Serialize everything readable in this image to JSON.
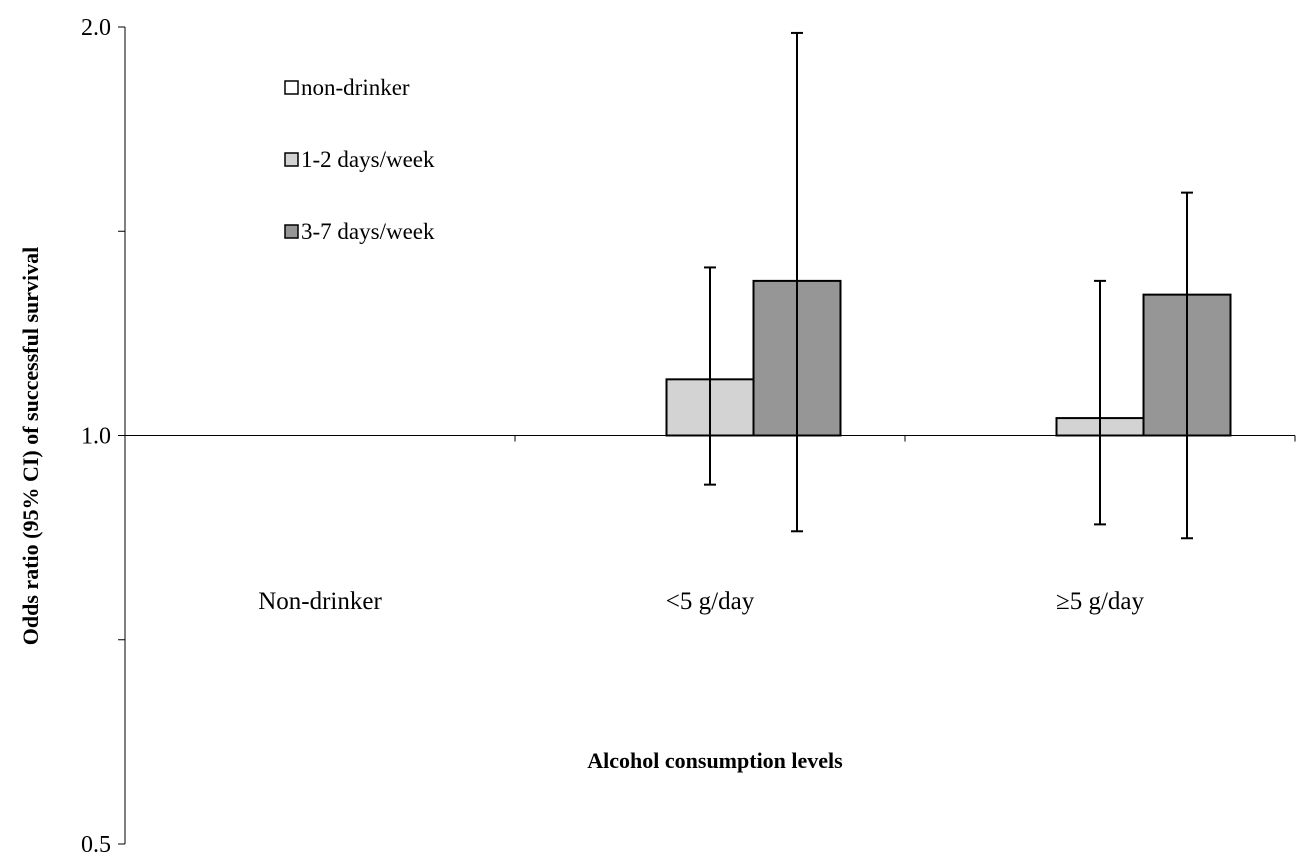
{
  "chart_data": {
    "type": "bar",
    "title": "",
    "xlabel": "Alcohol consumption levels",
    "ylabel": "Odds ratio (95% CI) of successful survival",
    "y_scale": "log",
    "ylim": [
      0.5,
      2.0
    ],
    "y_ticks": [
      {
        "value": 0.5,
        "label": "0.5"
      },
      {
        "value": 1.0,
        "label": "1.0"
      },
      {
        "value": 2.0,
        "label": "2.0"
      }
    ],
    "baseline": 1.0,
    "categories": [
      "Non-drinker",
      "<5 g/day",
      "≥5 g/day"
    ],
    "legend_position": "top-left",
    "series": [
      {
        "name": "non-drinker",
        "color": "#ffffff",
        "values": [
          null,
          null,
          null
        ],
        "ci_low": [
          null,
          null,
          null
        ],
        "ci_high": [
          null,
          null,
          null
        ]
      },
      {
        "name": "1-2 days/week",
        "color": "#d3d3d3",
        "values": [
          null,
          1.1,
          1.03
        ],
        "ci_low": [
          null,
          0.92,
          0.86
        ],
        "ci_high": [
          null,
          1.33,
          1.3
        ]
      },
      {
        "name": "3-7 days/week",
        "color": "#969696",
        "values": [
          null,
          1.3,
          1.27
        ],
        "ci_low": [
          null,
          0.85,
          0.84
        ],
        "ci_high": [
          null,
          1.98,
          1.51
        ]
      }
    ]
  }
}
